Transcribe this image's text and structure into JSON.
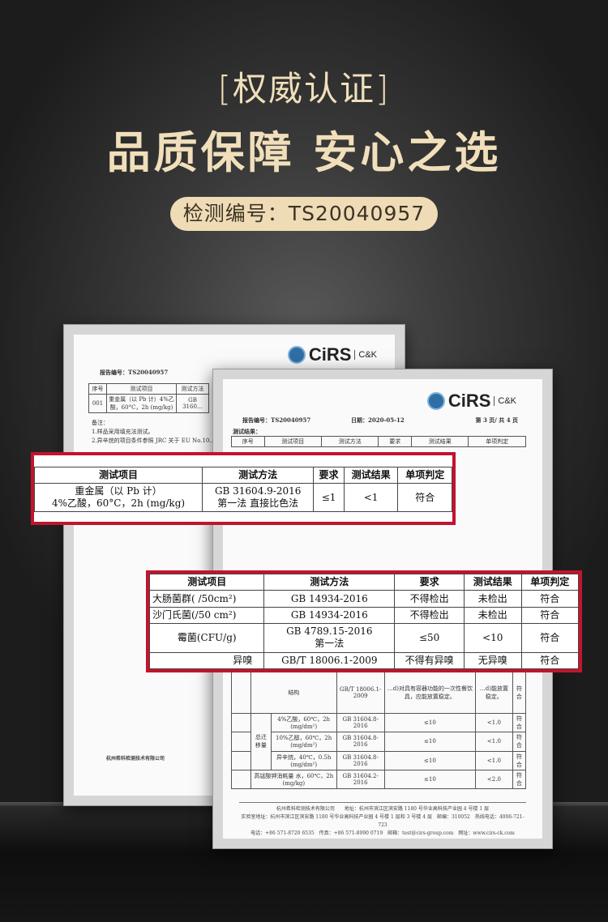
{
  "header": {
    "subtitle": "[权威认证]",
    "title": "品质保障 安心之选",
    "report_pill": "检测编号：TS20040957"
  },
  "logo": {
    "brand": "CiRS",
    "partner": "C&K"
  },
  "doc_back": {
    "report_no": "报告编号：TS20040957",
    "headers": [
      "序号",
      "测试项目",
      "测试方法"
    ],
    "row": [
      "001",
      "重金属（以 Pb 计）4%乙酸，60°C，2h (mg/kg)",
      "GB 3160…"
    ],
    "notes": [
      "备注：",
      "1.样品采用填充法测试。",
      "2.异辛烷的项目条件参照 JRC 关于 EU No.10…"
    ],
    "company": "杭州希科检测技术有限公司"
  },
  "doc_front": {
    "report_no": "报告编号：TS20040957",
    "date": "日期：2020-05-12",
    "page": "第 3 页/ 共 4 页",
    "section": "测试结果：",
    "headers": [
      "序号",
      "测试项目",
      "测试方法",
      "要求",
      "测试结果",
      "单项判定"
    ],
    "rows": [
      [
        "结构",
        "GB/T 18006.1-2009",
        "…d)对具有容器功能的一次性餐饮具，应能放置稳定。",
        "…d)能放置稳定。",
        "符合"
      ],
      [
        "总迁移量",
        "4%乙酸，60℃，2h (mg/dm²)",
        "GB 31604.8-2016",
        "≤10",
        "<1.0",
        "符合"
      ],
      [
        "10%乙醇，60℃，2h (mg/dm²)",
        "GB 31604.8-2016",
        "≤10",
        "<1.0",
        "符合"
      ],
      [
        "异辛烷，40℃，0.5h (mg/dm²)",
        "GB 31604.8-2016",
        "≤10",
        "<1.0",
        "符合"
      ],
      [
        "高锰酸钾消耗量 水，60℃，2h (mg/kg)",
        "GB 31604.2-2016",
        "≤10",
        "<2.0",
        "符合"
      ]
    ],
    "footer": [
      "杭州希科检测技术有限公司　　地址：杭州市滨江区滨安路 1180 号华业高科技产业园 4 号楼 1 层",
      "实验室地址：杭州市滨江区滨安路 1180 号华业高科技产业园 4 号楼 1 层和 3 号楼 4 层　邮编：310052　热线电话：4006-721-723",
      "电话：+86 571-8720 6535　传真：+86 571-8990 0719　邮箱：test@cirs-group.com　网址：www.cirs-ck.com"
    ]
  },
  "callout_heavy_metal": {
    "headers": [
      "测试项目",
      "测试方法",
      "要求",
      "测试结果",
      "单项判定"
    ],
    "row": {
      "item": "重金属（以 Pb 计）",
      "item2": "4%乙酸，60°C，2h (mg/kg)",
      "method": "GB 31604.9-2016",
      "method2": "第一法 直接比色法",
      "req": "≤1",
      "result": "<1",
      "verdict": "符合"
    }
  },
  "callout_micro": {
    "headers": [
      "测试项目",
      "测试方法",
      "要求",
      "测试结果",
      "单项判定"
    ],
    "rows": [
      {
        "item": "大肠菌群( /50cm²)",
        "method": "GB 14934-2016",
        "method2": "",
        "req": "不得检出",
        "result": "未检出",
        "verdict": "符合"
      },
      {
        "item": "沙门氏菌(/50 cm²)",
        "method": "GB 14934-2016",
        "method2": "",
        "req": "不得检出",
        "result": "未检出",
        "verdict": "符合"
      },
      {
        "item": "霉菌(CFU/g)",
        "method": "GB 4789.15-2016",
        "method2": "第一法",
        "req": "≤50",
        "result": "<10",
        "verdict": "符合"
      },
      {
        "item": "异嗅",
        "method": "GB/T 18006.1-2009",
        "method2": "",
        "req": "不得有异嗅",
        "result": "无异嗅",
        "verdict": "符合"
      }
    ]
  },
  "colors": {
    "gold": "#f0dfba",
    "accent_red": "#c2142c",
    "cirs_green": "#1f9a48"
  }
}
